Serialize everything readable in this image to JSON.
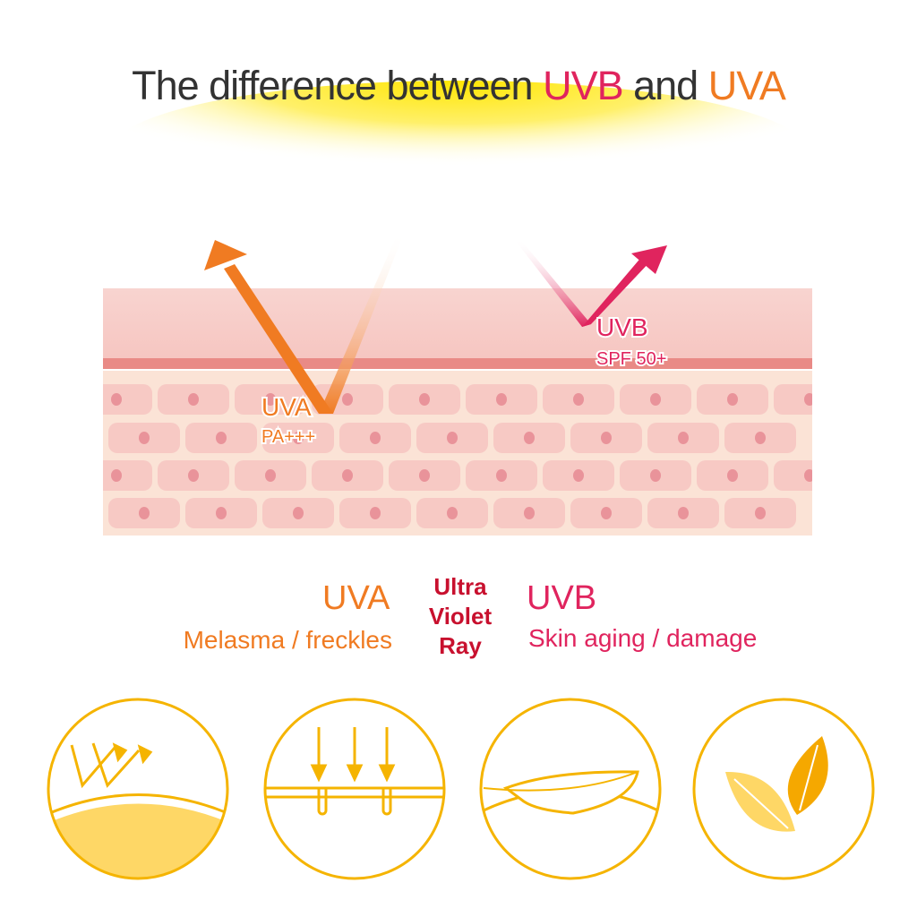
{
  "title": {
    "prefix": "The difference between ",
    "uvb": "UVB",
    "middle": " and ",
    "uva": "UVA"
  },
  "diagram": {
    "uva_label": "UVA",
    "uva_rating": "PA+++",
    "uvb_label": "UVB",
    "uvb_rating": "SPF 50+"
  },
  "legend": {
    "uva_title": "UVA",
    "uva_desc": "Melasma / freckles",
    "center": [
      "Ultra",
      "Violet",
      "Ray"
    ],
    "uvb_title": "UVB",
    "uvb_desc": "Skin aging / damage"
  },
  "icons": [
    "reflection-icon",
    "penetration-icon",
    "feather-icon",
    "leaves-icon"
  ],
  "colors": {
    "uva": "#f07b22",
    "uvb": "#e0245e",
    "center": "#c8102e",
    "icon": "#f5b400",
    "skin": "#f7c9c4"
  }
}
